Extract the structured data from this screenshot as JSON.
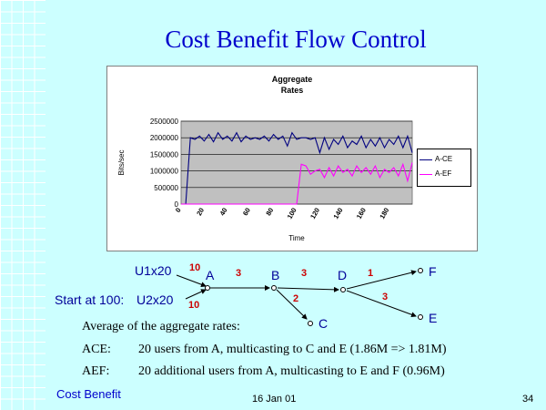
{
  "title": "Cost Benefit Flow Control",
  "chart_data": {
    "type": "line",
    "title_lines": [
      "Aggregate",
      "Rates"
    ],
    "xlabel": "Time",
    "ylabel": "Bits/sec",
    "xlim": [
      0,
      200
    ],
    "ylim": [
      0,
      2500000
    ],
    "x_ticks": [
      "0",
      "20",
      "40",
      "60",
      "80",
      "100",
      "120",
      "140",
      "160",
      "180"
    ],
    "y_ticks": [
      "0",
      "500000",
      "1000000",
      "1500000",
      "2000000",
      "2500000"
    ],
    "grid": true,
    "legend_position": "right",
    "series": [
      {
        "name": "A-CE",
        "color": "#000080",
        "x": [
          0,
          4,
          8,
          12,
          16,
          20,
          24,
          28,
          32,
          36,
          40,
          44,
          48,
          52,
          56,
          60,
          64,
          68,
          72,
          76,
          80,
          84,
          88,
          92,
          96,
          100,
          104,
          108,
          112,
          116,
          120,
          124,
          128,
          132,
          136,
          140,
          144,
          148,
          152,
          156,
          160,
          164,
          168,
          172,
          176,
          180,
          184,
          188,
          192,
          196,
          200
        ],
        "y": [
          0,
          0,
          2000000,
          1950000,
          2050000,
          1900000,
          2100000,
          1880000,
          2150000,
          1950000,
          2050000,
          1900000,
          2150000,
          1880000,
          2050000,
          1950000,
          2000000,
          1950000,
          2050000,
          1900000,
          2100000,
          1950000,
          2050000,
          1750000,
          2150000,
          1950000,
          2000000,
          2000000,
          1950000,
          2000000,
          1550000,
          2000000,
          1650000,
          1950000,
          1800000,
          2050000,
          1700000,
          1900000,
          1800000,
          2050000,
          1700000,
          1950000,
          1750000,
          2000000,
          1700000,
          1950000,
          1800000,
          2050000,
          1700000,
          2050000,
          1550000
        ]
      },
      {
        "name": "A-EF",
        "color": "#ff00ff",
        "x": [
          0,
          100,
          104,
          108,
          112,
          116,
          120,
          124,
          128,
          132,
          136,
          140,
          144,
          148,
          152,
          156,
          160,
          164,
          168,
          172,
          176,
          180,
          184,
          188,
          192,
          196,
          200
        ],
        "y": [
          0,
          0,
          1200000,
          1150000,
          900000,
          1000000,
          1050000,
          800000,
          1100000,
          850000,
          1150000,
          950000,
          1050000,
          850000,
          1150000,
          950000,
          1100000,
          900000,
          1150000,
          800000,
          1050000,
          950000,
          1100000,
          850000,
          1200000,
          700000,
          1250000
        ]
      }
    ]
  },
  "network": {
    "start_label": "Start at 100:",
    "u1": "U1x20",
    "u2": "U2x20",
    "nodes": {
      "A": "A",
      "B": "B",
      "C": "C",
      "D": "D",
      "E": "E",
      "F": "F"
    },
    "weights": {
      "u1_a": "10",
      "u2_a": "10",
      "a_b": "3",
      "b_d": "3",
      "b_c": "2",
      "d_f": "1",
      "d_e": "3"
    }
  },
  "text": {
    "line1": "Average of the aggregate rates:",
    "ace_label": "ACE:",
    "ace_desc": "20 users from A, multicasting to C and E (1.86M => 1.81M)",
    "aef_label": "AEF:",
    "aef_desc": "20 additional users from A, multicasting to E and F (0.96M)"
  },
  "footer": {
    "left": "Cost Benefit",
    "center": "16 Jan 01",
    "right": "34"
  }
}
